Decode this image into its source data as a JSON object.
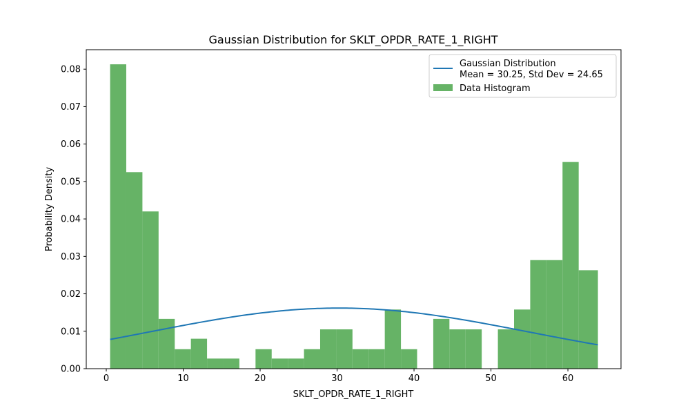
{
  "chart_data": {
    "type": "bar",
    "title": "Gaussian Distribution for SKLT_OPDR_RATE_1_RIGHT",
    "xlabel": "SKLT_OPDR_RATE_1_RIGHT",
    "ylabel": "Probability Density",
    "xlim": [
      -2.6,
      66.9
    ],
    "ylim": [
      0,
      0.0852
    ],
    "xticks": [
      0,
      10,
      20,
      30,
      40,
      50,
      60
    ],
    "yticks": [
      0.0,
      0.01,
      0.02,
      0.03,
      0.04,
      0.05,
      0.06,
      0.07,
      0.08
    ],
    "ytick_labels": [
      "0.00",
      "0.01",
      "0.02",
      "0.03",
      "0.04",
      "0.05",
      "0.06",
      "0.07",
      "0.08"
    ],
    "grid": false,
    "legend_position": "top-right",
    "histogram": {
      "name": "Data Histogram",
      "color": "#66b366",
      "bin_edges": [
        0.5,
        2.6,
        4.7,
        6.8,
        8.9,
        11.0,
        13.1,
        15.2,
        17.3,
        19.4,
        21.5,
        23.6,
        25.7,
        27.8,
        29.9,
        32.0,
        34.1,
        36.2,
        38.3,
        40.4,
        42.5,
        44.6,
        46.7,
        48.8,
        50.9,
        53.0,
        55.1,
        57.2,
        59.3,
        61.4,
        63.9
      ],
      "densities": [
        0.0813,
        0.0525,
        0.042,
        0.0133,
        0.0052,
        0.008,
        0.0027,
        0.0027,
        0.0,
        0.0052,
        0.0027,
        0.0027,
        0.0052,
        0.0105,
        0.0105,
        0.0052,
        0.0052,
        0.0158,
        0.0052,
        0.0,
        0.0133,
        0.0105,
        0.0105,
        0.0,
        0.0105,
        0.0158,
        0.029,
        0.029,
        0.0552,
        0.0263
      ]
    },
    "curve": {
      "name_line1": "Gaussian Distribution",
      "name_line2": "Mean = 30.25, Std Dev = 24.65",
      "color": "#1f77b4",
      "mean": 30.25,
      "std": 24.65,
      "x_range": [
        0.5,
        63.9
      ]
    }
  }
}
